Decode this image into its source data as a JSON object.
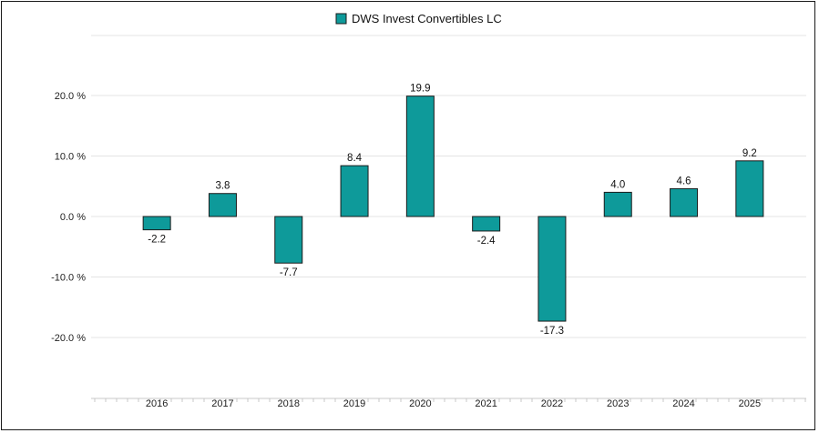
{
  "chart_data": {
    "type": "bar",
    "categories": [
      "2016",
      "2017",
      "2018",
      "2019",
      "2020",
      "2021",
      "2022",
      "2023",
      "2024",
      "2025"
    ],
    "series": [
      {
        "name": "DWS Invest Convertibles LC",
        "values": [
          -2.2,
          3.8,
          -7.7,
          8.4,
          19.9,
          -2.4,
          -17.3,
          4.0,
          4.6,
          9.2
        ],
        "labels": [
          "-2.2",
          "3.8",
          "-7.7",
          "8.4",
          "19.9",
          "-2.4",
          "-17.3",
          "4.0",
          "4.6",
          "9.2"
        ]
      }
    ],
    "y_ticks": [
      {
        "value": 20,
        "label": "20.0 %"
      },
      {
        "value": 10,
        "label": "10.0 %"
      },
      {
        "value": 0,
        "label": "0.0 %"
      },
      {
        "value": -10,
        "label": "-10.0 %"
      },
      {
        "value": -20,
        "label": "-20.0 %"
      }
    ],
    "ylim": [
      -30,
      30
    ],
    "grid": true,
    "legend_position": "top-center",
    "bar_color": "#0e9a9a",
    "bar_border_color": "#1b1b1b",
    "grid_color": "#e4e4e4",
    "axis_color": "#c8c8c8"
  }
}
